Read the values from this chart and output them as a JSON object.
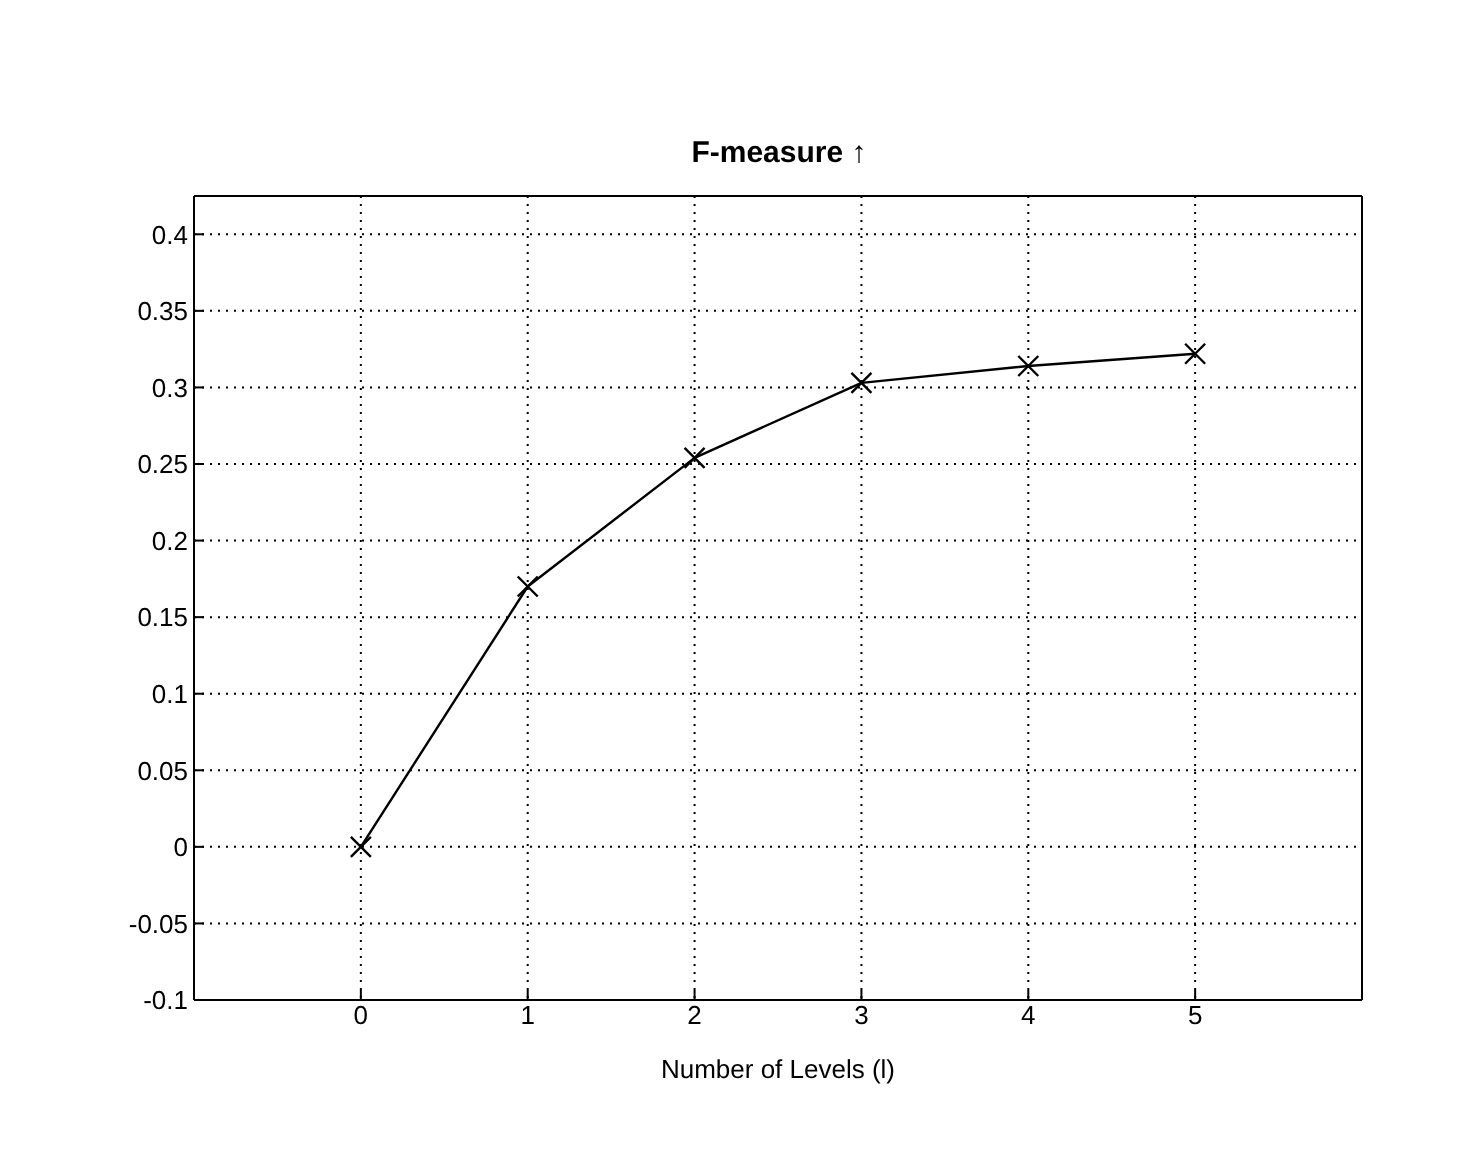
{
  "chart_data": {
    "type": "line",
    "title": "F-measure ↑",
    "xlabel": "Number of Levels (l)",
    "x": [
      0,
      1,
      2,
      3,
      4,
      5
    ],
    "series": [
      {
        "color": "#000000",
        "values": [
          0,
          0.17,
          0.254,
          0.303,
          0.314,
          0.322
        ]
      }
    ],
    "xlim": [
      -1,
      6
    ],
    "xticks": [
      0,
      1,
      2,
      3,
      4,
      5
    ],
    "ylim": [
      -0.1,
      0.425
    ],
    "yticks": [
      -0.1,
      -0.05,
      0,
      0.05,
      0.1,
      0.15,
      0.2,
      0.25,
      0.3,
      0.35,
      0.4
    ],
    "grid": true,
    "marker": "cross",
    "line_style": "solid"
  }
}
